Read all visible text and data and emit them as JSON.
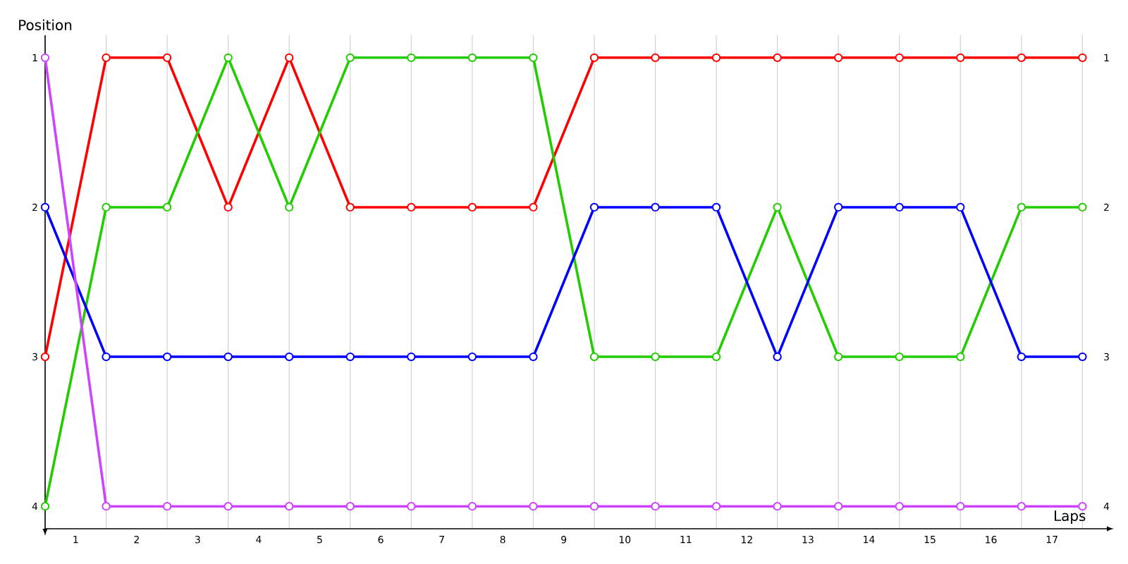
{
  "chart_data": {
    "type": "line",
    "xlabel": "Laps",
    "ylabel": "Position",
    "x": [
      0,
      1,
      2,
      3,
      4,
      5,
      6,
      7,
      8,
      9,
      10,
      11,
      12,
      13,
      14,
      15,
      16,
      17
    ],
    "series": [
      {
        "color": "#ff0000",
        "values": [
          3,
          1,
          1,
          2,
          1,
          2,
          2,
          2,
          2,
          1,
          1,
          1,
          1,
          1,
          1,
          1,
          1,
          1
        ]
      },
      {
        "color": "#22cc00",
        "values": [
          4,
          2,
          2,
          1,
          2,
          1,
          1,
          1,
          1,
          3,
          3,
          3,
          2,
          3,
          3,
          3,
          2,
          2
        ]
      },
      {
        "color": "#0000ff",
        "values": [
          2,
          3,
          3,
          3,
          3,
          3,
          3,
          3,
          3,
          2,
          2,
          2,
          3,
          2,
          2,
          2,
          3,
          3
        ]
      },
      {
        "color": "#cc44ff",
        "values": [
          1,
          4,
          4,
          4,
          4,
          4,
          4,
          4,
          4,
          4,
          4,
          4,
          4,
          4,
          4,
          4,
          4,
          4
        ]
      }
    ],
    "xlim": [
      0,
      17.4
    ],
    "xticks": [
      {
        "value": 0,
        "label": null
      },
      {
        "value": 0.5,
        "label": "1"
      },
      {
        "value": 1,
        "label": null
      },
      {
        "value": 1.5,
        "label": "2"
      },
      {
        "value": 2,
        "label": null
      },
      {
        "value": 2.5,
        "label": "3"
      },
      {
        "value": 3,
        "label": null
      },
      {
        "value": 3.5,
        "label": "4"
      },
      {
        "value": 4,
        "label": null
      },
      {
        "value": 4.5,
        "label": "5"
      },
      {
        "value": 5,
        "label": null
      },
      {
        "value": 5.5,
        "label": "6"
      },
      {
        "value": 6,
        "label": null
      },
      {
        "value": 6.5,
        "label": "7"
      },
      {
        "value": 7,
        "label": null
      },
      {
        "value": 7.5,
        "label": "8"
      },
      {
        "value": 8,
        "label": null
      },
      {
        "value": 8.5,
        "label": "9"
      },
      {
        "value": 9,
        "label": null
      },
      {
        "value": 9.5,
        "label": "10"
      },
      {
        "value": 10,
        "label": null
      },
      {
        "value": 10.5,
        "label": "11"
      },
      {
        "value": 11,
        "label": null
      },
      {
        "value": 11.5,
        "label": "12"
      },
      {
        "value": 12,
        "label": null
      },
      {
        "value": 12.5,
        "label": "13"
      },
      {
        "value": 13,
        "label": null
      },
      {
        "value": 13.5,
        "label": "14"
      },
      {
        "value": 14,
        "label": null
      },
      {
        "value": 14.5,
        "label": "15"
      },
      {
        "value": 15,
        "label": null
      },
      {
        "value": 15.5,
        "label": "16"
      },
      {
        "value": 16,
        "label": null
      },
      {
        "value": 16.5,
        "label": "17"
      },
      {
        "value": 17,
        "label": null
      }
    ],
    "ylim": [
      4.15,
      0.85
    ],
    "yticks": [
      1,
      2,
      3,
      4
    ],
    "y2lim": [
      4.15,
      0.85
    ],
    "y2ticks": [
      1,
      2,
      3,
      4
    ],
    "grid": "x",
    "marker": "circle",
    "line_style": "solid"
  }
}
